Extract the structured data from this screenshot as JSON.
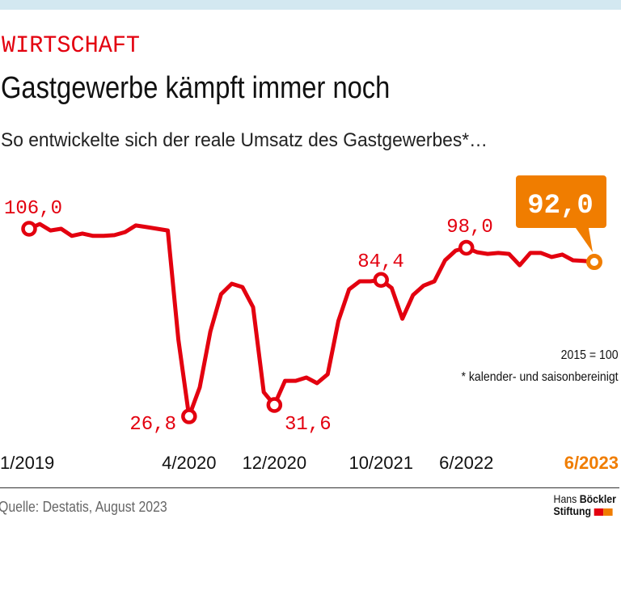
{
  "kicker": "WIRTSCHAFT",
  "title": "Gastgewerbe kämpft immer noch",
  "subtitle": "So entwickelte sich der reale Umsatz des Gastgewerbes*…",
  "notes": {
    "base": "2015 = 100",
    "footnote": "* kalender- und saisonbereinigt"
  },
  "source": "Quelle: Destatis, August 2023",
  "logo": {
    "line1_light": "Hans",
    "line1_bold": "Böckler",
    "line2": "Stiftung",
    "colors": [
      "#e3000f",
      "#f07d00"
    ]
  },
  "colors": {
    "line": "#e3000f",
    "highlight": "#f07d00",
    "background": "#ffffff",
    "topbar": "#d3e8f1"
  },
  "chart_data": {
    "type": "line",
    "title": "Gastgewerbe kämpft immer noch",
    "x_start": "1/2019",
    "x_end": "6/2023",
    "frequency": "monthly",
    "ylim": [
      20,
      110
    ],
    "grid": false,
    "legend": "none",
    "tick_labels": [
      {
        "label": "1/2019",
        "index": 0
      },
      {
        "label": "4/2020",
        "index": 15
      },
      {
        "label": "12/2020",
        "index": 23
      },
      {
        "label": "10/2021",
        "index": 33
      },
      {
        "label": "6/2022",
        "index": 41
      },
      {
        "label": "6/2023",
        "index": 53,
        "highlight": true
      }
    ],
    "values": [
      106.0,
      108.0,
      105.3,
      106.0,
      103.0,
      104.0,
      103.0,
      103.0,
      103.3,
      104.6,
      107.4,
      106.7,
      106.0,
      105.3,
      59.2,
      26.8,
      39.0,
      62.7,
      78.4,
      82.8,
      81.4,
      72.9,
      37.0,
      31.6,
      41.8,
      41.8,
      43.2,
      40.8,
      44.6,
      67.1,
      80.4,
      83.8,
      83.8,
      84.4,
      81.0,
      68.0,
      78.0,
      82.0,
      83.8,
      92.7,
      96.8,
      98.0,
      96.1,
      95.4,
      95.8,
      95.4,
      90.6,
      95.8,
      95.8,
      94.1,
      95.1,
      92.7,
      92.4,
      92.0
    ],
    "annotations": [
      {
        "index": 0,
        "label": "106,0"
      },
      {
        "index": 15,
        "label": "26,8"
      },
      {
        "index": 23,
        "label": "31,6"
      },
      {
        "index": 33,
        "label": "84,4"
      },
      {
        "index": 41,
        "label": "98,0"
      },
      {
        "index": 53,
        "label": "92,0",
        "highlight": true
      }
    ]
  }
}
